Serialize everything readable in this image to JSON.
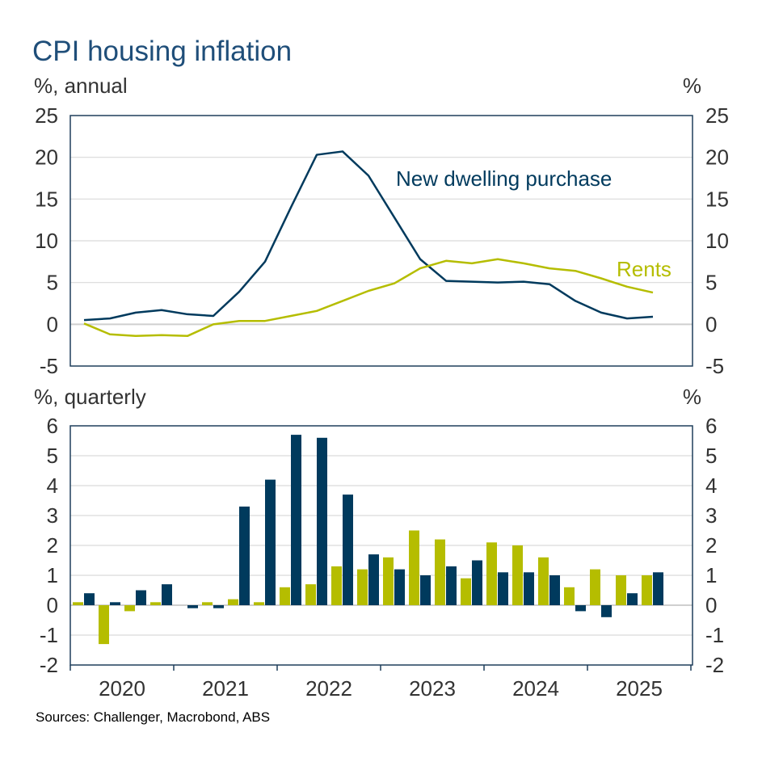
{
  "title": "CPI housing inflation",
  "source": "Sources: Challenger, Macrobond, ABS",
  "colors": {
    "new_dwelling": "#003a5d",
    "rents": "#b5bd00",
    "title": "#1f4e79"
  },
  "chart_data": [
    {
      "type": "line",
      "ylabel_left": "%, annual",
      "ylabel_right": "%",
      "ylim": [
        -5,
        25
      ],
      "yticks": [
        25,
        20,
        15,
        10,
        5,
        0,
        -5
      ],
      "grid": true,
      "x": [
        "2020Q1",
        "2020Q2",
        "2020Q3",
        "2020Q4",
        "2021Q1",
        "2021Q2",
        "2021Q3",
        "2021Q4",
        "2022Q1",
        "2022Q2",
        "2022Q3",
        "2022Q4",
        "2023Q1",
        "2023Q2",
        "2023Q3",
        "2023Q4",
        "2024Q1",
        "2024Q2",
        "2024Q3",
        "2024Q4",
        "2025Q1",
        "2025Q2",
        "2025Q3"
      ],
      "series": [
        {
          "name": "New dwelling purchase",
          "color": "#003a5d",
          "values": [
            0.5,
            0.7,
            1.4,
            1.7,
            1.2,
            1.0,
            3.9,
            7.5,
            14.0,
            20.3,
            20.7,
            17.8,
            12.8,
            7.8,
            5.2,
            5.1,
            5.0,
            5.1,
            4.8,
            2.8,
            1.4,
            0.7,
            0.9
          ]
        },
        {
          "name": "Rents",
          "color": "#b5bd00",
          "values": [
            0.1,
            -1.2,
            -1.4,
            -1.3,
            -1.4,
            0.0,
            0.4,
            0.4,
            1.0,
            1.6,
            2.8,
            4.0,
            4.9,
            6.7,
            7.6,
            7.3,
            7.8,
            7.3,
            6.7,
            6.4,
            5.5,
            4.5,
            3.8
          ]
        }
      ]
    },
    {
      "type": "bar",
      "ylabel_left": "%, quarterly",
      "ylabel_right": "%",
      "ylim": [
        -2,
        6
      ],
      "yticks": [
        6,
        5,
        4,
        3,
        2,
        1,
        0,
        -1,
        -2
      ],
      "grid": true,
      "xtick_labels": [
        "2020",
        "2021",
        "2022",
        "2023",
        "2024",
        "2025"
      ],
      "x": [
        "2020Q1",
        "2020Q2",
        "2020Q3",
        "2020Q4",
        "2021Q1",
        "2021Q2",
        "2021Q3",
        "2021Q4",
        "2022Q1",
        "2022Q2",
        "2022Q3",
        "2022Q4",
        "2023Q1",
        "2023Q2",
        "2023Q3",
        "2023Q4",
        "2024Q1",
        "2024Q2",
        "2024Q3",
        "2024Q4",
        "2025Q1",
        "2025Q2",
        "2025Q3"
      ],
      "series": [
        {
          "name": "Rents",
          "color": "#b5bd00",
          "values": [
            0.1,
            -1.3,
            -0.2,
            0.1,
            0.0,
            0.1,
            0.2,
            0.1,
            0.6,
            0.7,
            1.3,
            1.2,
            1.6,
            2.5,
            2.2,
            0.9,
            2.1,
            2.0,
            1.6,
            0.6,
            1.2,
            1.0,
            1.0
          ]
        },
        {
          "name": "New dwelling purchase",
          "color": "#003a5d",
          "values": [
            0.4,
            0.1,
            0.5,
            0.7,
            -0.1,
            -0.1,
            3.3,
            4.2,
            5.7,
            5.6,
            3.7,
            1.7,
            1.2,
            1.0,
            1.3,
            1.5,
            1.1,
            1.1,
            1.0,
            -0.2,
            -0.4,
            0.4,
            1.1
          ]
        }
      ]
    }
  ]
}
